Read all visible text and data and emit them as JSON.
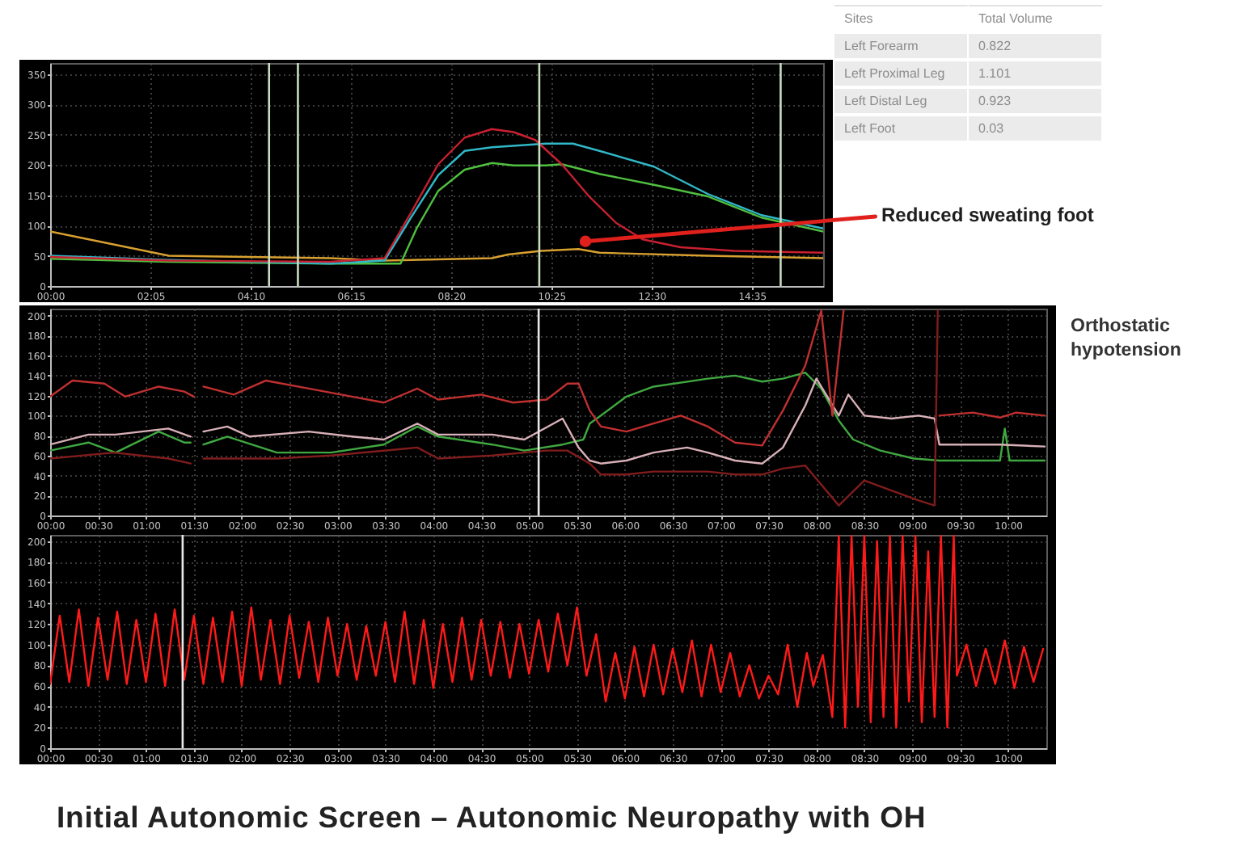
{
  "chart_data": [
    {
      "type": "line",
      "series": [
        {
          "color": "#d8a030",
          "x": [
            0,
            148,
            349,
            417,
            484,
            551,
            571,
            612,
            659,
            685,
            820,
            964
          ],
          "values": [
            90,
            50,
            46,
            42,
            44,
            46,
            52,
            58,
            61,
            55,
            50,
            46
          ]
        },
        {
          "color": "#50c040",
          "x": [
            0,
            148,
            349,
            437,
            457,
            484,
            517,
            551,
            578,
            618,
            638,
            685,
            753,
            820,
            887,
            964
          ],
          "values": [
            45,
            40,
            37,
            37,
            95,
            157,
            192,
            203,
            199,
            199,
            201,
            185,
            167,
            148,
            113,
            90
          ]
        },
        {
          "color": "#30b8c8",
          "x": [
            0,
            148,
            349,
            417,
            450,
            484,
            517,
            551,
            618,
            652,
            685,
            753,
            820,
            887,
            964
          ],
          "values": [
            50,
            43,
            37,
            42,
            113,
            183,
            223,
            229,
            235,
            235,
            223,
            197,
            152,
            117,
            95
          ]
        },
        {
          "color": "#c82030",
          "x": [
            0,
            148,
            349,
            417,
            450,
            484,
            517,
            551,
            578,
            605,
            638,
            672,
            706,
            739,
            786,
            853,
            964
          ],
          "values": [
            48,
            42,
            40,
            46,
            121,
            201,
            245,
            259,
            254,
            241,
            201,
            148,
            104,
            77,
            64,
            58,
            55
          ]
        }
      ],
      "xlim": [
        0,
        964
      ],
      "xticks": [
        {
          "value": 0,
          "label": "00:00"
        },
        {
          "value": 125,
          "label": "02:05"
        },
        {
          "value": 250,
          "label": "04:10"
        },
        {
          "value": 375,
          "label": "06:15"
        },
        {
          "value": 500,
          "label": "08:20"
        },
        {
          "value": 625,
          "label": "10:25"
        },
        {
          "value": 750,
          "label": "12:30"
        },
        {
          "value": 875,
          "label": "14:35"
        }
      ],
      "ylim": [
        0,
        368
      ],
      "yticks": [
        0,
        50,
        100,
        150,
        200,
        250,
        300,
        350
      ],
      "grid": true,
      "ref_lines": [
        {
          "axis": "x",
          "value": 273,
          "color": "#c8dcc0"
        },
        {
          "axis": "x",
          "value": 309,
          "color": "#c8dcc0"
        },
        {
          "axis": "x",
          "value": 610,
          "color": "#c8dcc0"
        },
        {
          "axis": "x",
          "value": 911,
          "color": "#c8dcc0"
        }
      ],
      "annotations": [
        {
          "text": "Reduced sweating foot",
          "x": 675,
          "y": 71
        }
      ]
    },
    {
      "type": "other",
      "annotations": [
        "Sites",
        "Total Volume",
        "Left Forearm",
        "0.822",
        "Left Proximal Leg",
        "1.101",
        "Left Distal Leg",
        "0.923",
        "Left Foot",
        "0.03"
      ]
    },
    {
      "type": "line",
      "series": [
        {
          "color": "#40a840",
          "x": [
            0,
            24,
            41,
            68,
            84,
            88,
            92,
            96,
            111,
            142,
            176,
            209,
            230,
            243,
            277,
            297,
            321,
            334,
            338,
            345,
            361,
            378,
            412,
            429,
            446,
            459,
            473,
            483,
            494,
            503,
            520,
            541,
            557,
            595,
            598,
            601,
            623
          ],
          "values": [
            65,
            73,
            63,
            84,
            73,
            73,
            null,
            71,
            79,
            63,
            63,
            71,
            89,
            79,
            71,
            65,
            71,
            76,
            92,
            100,
            119,
            129,
            137,
            140,
            134,
            137,
            143,
            127,
            95,
            76,
            65,
            57,
            55,
            55,
            87,
            55,
            55
          ]
        },
        {
          "color": "#d8b0b8",
          "x": [
            0,
            24,
            41,
            74,
            88,
            92,
            96,
            111,
            125,
            162,
            189,
            209,
            230,
            243,
            277,
            297,
            321,
            331,
            338,
            345,
            361,
            378,
            399,
            412,
            429,
            446,
            459,
            473,
            480,
            494,
            500,
            510,
            527,
            544,
            554,
            557,
            595,
            623
          ],
          "values": [
            71,
            81,
            81,
            87,
            79,
            null,
            84,
            89,
            79,
            84,
            79,
            76,
            92,
            81,
            81,
            76,
            97,
            68,
            55,
            52,
            55,
            63,
            68,
            63,
            55,
            52,
            68,
            110,
            137,
            100,
            121,
            100,
            97,
            100,
            97,
            71,
            71,
            69
          ]
        },
        {
          "color": "#801c1c",
          "x": [
            0,
            40,
            74,
            88,
            92,
            96,
            142,
            176,
            230,
            243,
            277,
            311,
            324,
            338,
            345,
            361,
            378,
            412,
            429,
            446,
            459,
            473,
            494,
            510,
            527,
            544,
            554,
            556
          ],
          "values": [
            57,
            63,
            57,
            52,
            null,
            57,
            57,
            60,
            68,
            57,
            60,
            65,
            65,
            52,
            41,
            41,
            44,
            44,
            41,
            41,
            47,
            50,
            10,
            35,
            25,
            15,
            10,
            205
          ]
        },
        {
          "color": "#c03030",
          "x": [
            0,
            14,
            34,
            47,
            68,
            84,
            90,
            92,
            96,
            115,
            135,
            162,
            189,
            209,
            230,
            243,
            270,
            290,
            311,
            324,
            331,
            338,
            345,
            361,
            378,
            395,
            412,
            429,
            446,
            459,
            473,
            483,
            490,
            497,
            500,
            557,
            578,
            595,
            605,
            623
          ],
          "values": [
            119,
            135,
            132,
            119,
            129,
            124,
            119,
            null,
            129,
            121,
            135,
            127,
            119,
            113,
            127,
            116,
            121,
            113,
            116,
            132,
            132,
            105,
            89,
            84,
            92,
            100,
            89,
            73,
            70,
            105,
            150,
            205,
            100,
            205,
            null,
            100,
            103,
            98,
            103,
            100
          ]
        }
      ],
      "xlim": [
        0,
        624
      ],
      "xticks": [
        {
          "value": 0,
          "label": "00:00"
        },
        {
          "value": 30,
          "label": "00:30"
        },
        {
          "value": 60,
          "label": "01:00"
        },
        {
          "value": 90,
          "label": "01:30"
        },
        {
          "value": 120,
          "label": "02:00"
        },
        {
          "value": 150,
          "label": "02:30"
        },
        {
          "value": 180,
          "label": "03:00"
        },
        {
          "value": 210,
          "label": "03:30"
        },
        {
          "value": 240,
          "label": "04:00"
        },
        {
          "value": 270,
          "label": "04:30"
        },
        {
          "value": 300,
          "label": "05:00"
        },
        {
          "value": 330,
          "label": "05:30"
        },
        {
          "value": 360,
          "label": "06:00"
        },
        {
          "value": 390,
          "label": "06:30"
        },
        {
          "value": 420,
          "label": "07:00"
        },
        {
          "value": 450,
          "label": "07:30"
        },
        {
          "value": 480,
          "label": "08:00"
        },
        {
          "value": 510,
          "label": "08:30"
        },
        {
          "value": 540,
          "label": "09:00"
        },
        {
          "value": 570,
          "label": "09:30"
        },
        {
          "value": 600,
          "label": "10:00"
        }
      ],
      "ylim": [
        0,
        207
      ],
      "yticks": [
        0,
        20,
        40,
        60,
        80,
        100,
        120,
        140,
        160,
        180,
        200
      ],
      "grid": true,
      "ref_lines": [
        {
          "axis": "x",
          "value": 306,
          "color": "#e8e8e8"
        }
      ],
      "annotations": [
        "Orthostatic hypotension"
      ]
    },
    {
      "type": "line",
      "title": "Initial Autonomic Screen – Autonomic Neuropathy with OH",
      "series": [
        {
          "color": "#ff1a1a",
          "x": [
            0,
            6,
            12,
            18,
            24,
            30,
            36,
            42,
            48,
            54,
            60,
            66,
            72,
            78,
            84,
            90,
            96,
            102,
            108,
            114,
            120,
            126,
            132,
            138,
            144,
            150,
            156,
            162,
            168,
            174,
            180,
            186,
            192,
            198,
            204,
            210,
            216,
            222,
            228,
            234,
            240,
            246,
            252,
            258,
            264,
            270,
            276,
            282,
            288,
            294,
            300,
            306,
            312,
            318,
            324,
            330,
            336,
            342,
            348,
            354,
            360,
            366,
            372,
            378,
            384,
            390,
            396,
            402,
            408,
            414,
            420,
            426,
            432,
            438,
            444,
            450,
            456,
            462,
            468,
            474,
            478,
            484,
            490,
            494,
            498,
            502,
            506,
            510,
            514,
            518,
            522,
            526,
            530,
            534,
            538,
            542,
            546,
            550,
            554,
            558,
            562,
            566,
            568,
            574,
            580,
            586,
            592,
            598,
            604,
            610,
            616,
            622
          ],
          "values": [
            62,
            128,
            64,
            134,
            60,
            126,
            66,
            132,
            62,
            124,
            64,
            130,
            60,
            134,
            66,
            128,
            62,
            126,
            64,
            132,
            60,
            136,
            66,
            124,
            62,
            128,
            68,
            122,
            64,
            126,
            70,
            120,
            66,
            118,
            70,
            122,
            64,
            132,
            62,
            124,
            58,
            120,
            64,
            126,
            66,
            124,
            70,
            122,
            68,
            120,
            72,
            124,
            74,
            130,
            80,
            136,
            70,
            110,
            45,
            92,
            48,
            98,
            50,
            100,
            52,
            96,
            54,
            104,
            50,
            100,
            54,
            92,
            50,
            80,
            48,
            70,
            52,
            100,
            40,
            92,
            60,
            90,
            30,
            205,
            20,
            205,
            40,
            205,
            25,
            200,
            30,
            205,
            20,
            205,
            45,
            205,
            25,
            190,
            30,
            205,
            20,
            205,
            70,
            100,
            60,
            96,
            62,
            104,
            58,
            98,
            64,
            96
          ]
        }
      ],
      "xlim": [
        0,
        624
      ],
      "xticks": [
        {
          "value": 0,
          "label": "00:00"
        },
        {
          "value": 30,
          "label": "00:30"
        },
        {
          "value": 60,
          "label": "01:00"
        },
        {
          "value": 90,
          "label": "01:30"
        },
        {
          "value": 120,
          "label": "02:00"
        },
        {
          "value": 150,
          "label": "02:30"
        },
        {
          "value": 180,
          "label": "03:00"
        },
        {
          "value": 210,
          "label": "03:30"
        },
        {
          "value": 240,
          "label": "04:00"
        },
        {
          "value": 270,
          "label": "04:30"
        },
        {
          "value": 300,
          "label": "05:00"
        },
        {
          "value": 330,
          "label": "05:30"
        },
        {
          "value": 360,
          "label": "06:00"
        },
        {
          "value": 390,
          "label": "06:30"
        },
        {
          "value": 420,
          "label": "07:00"
        },
        {
          "value": 450,
          "label": "07:30"
        },
        {
          "value": 480,
          "label": "08:00"
        },
        {
          "value": 510,
          "label": "08:30"
        },
        {
          "value": 540,
          "label": "09:00"
        },
        {
          "value": 570,
          "label": "09:30"
        },
        {
          "value": 600,
          "label": "10:00"
        }
      ],
      "ylim": [
        0,
        206
      ],
      "yticks": [
        0,
        20,
        40,
        60,
        80,
        100,
        120,
        140,
        160,
        180,
        200
      ],
      "grid": true,
      "ref_lines": [
        {
          "axis": "x",
          "value": 83,
          "color": "#e8e8e8"
        }
      ]
    }
  ]
}
